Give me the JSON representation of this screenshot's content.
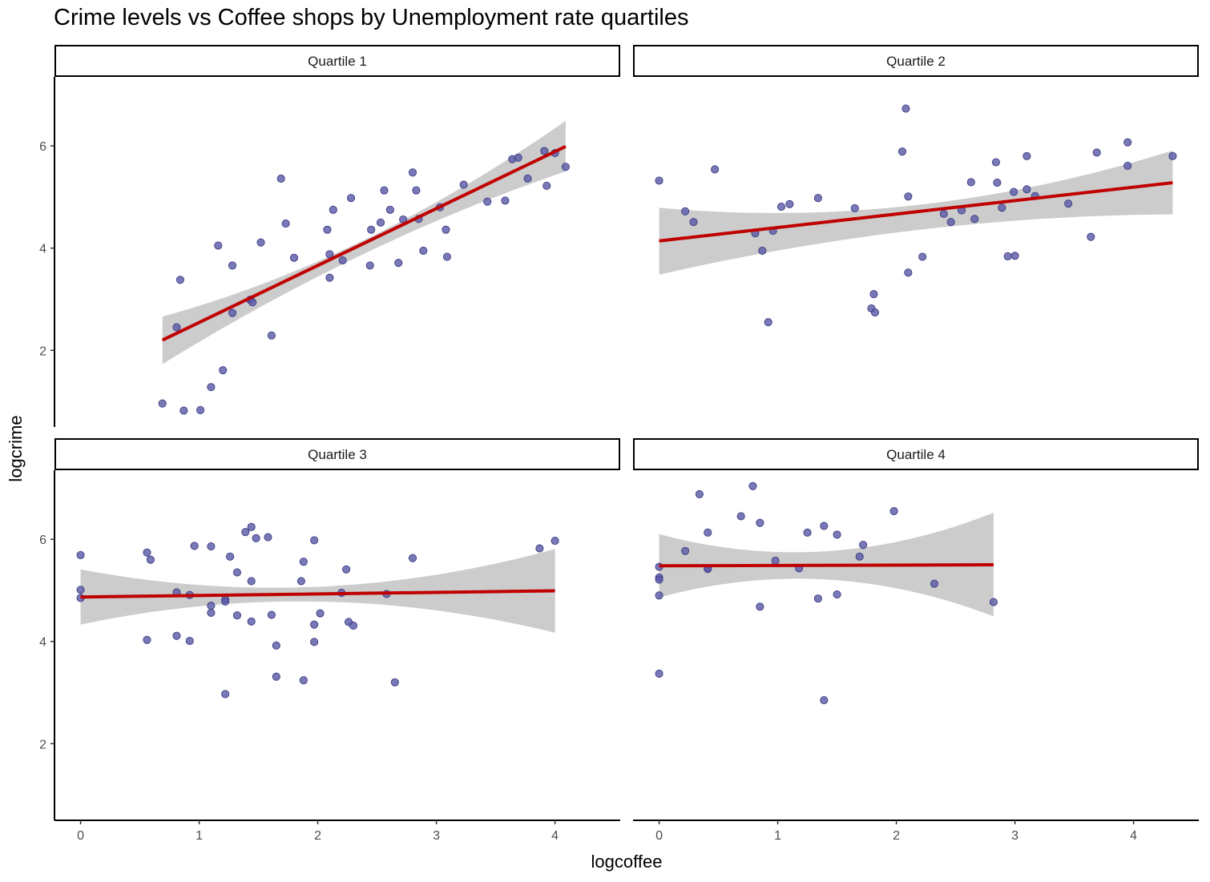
{
  "chart_data": {
    "type": "scatter",
    "title": "Crime levels vs Coffee shops by Unemployment rate quartiles",
    "xlabel": "logcoffee",
    "ylabel": "logcrime",
    "xlim": [
      -0.22,
      4.55
    ],
    "ylim": [
      0.5,
      7.35
    ],
    "x_ticks": [
      0,
      1,
      2,
      3,
      4
    ],
    "y_ticks": [
      2,
      4,
      6
    ],
    "grid": false,
    "colors": {
      "points": "#5b5ba8",
      "fit_line": "#c00000",
      "band": "#cccccc"
    },
    "panels": [
      {
        "label": "Quartile 1",
        "fit": {
          "x": [
            0.69,
            4.09
          ],
          "y": [
            2.2,
            5.99
          ]
        },
        "band": {
          "x": [
            0.69,
            2.4,
            4.09
          ],
          "upper": [
            2.66,
            4.17,
            6.49
          ],
          "lower": [
            1.73,
            3.9,
            5.5
          ]
        },
        "points": [
          [
            0.69,
            0.96
          ],
          [
            0.81,
            2.45
          ],
          [
            0.84,
            3.38
          ],
          [
            0.87,
            0.82
          ],
          [
            1.01,
            0.83
          ],
          [
            1.1,
            1.28
          ],
          [
            1.16,
            4.05
          ],
          [
            1.2,
            1.61
          ],
          [
            1.28,
            3.66
          ],
          [
            1.28,
            2.73
          ],
          [
            1.43,
            2.99
          ],
          [
            1.45,
            2.94
          ],
          [
            1.52,
            4.11
          ],
          [
            1.61,
            2.29
          ],
          [
            1.69,
            5.36
          ],
          [
            1.73,
            4.48
          ],
          [
            1.8,
            3.81
          ],
          [
            2.08,
            4.36
          ],
          [
            2.1,
            3.88
          ],
          [
            2.1,
            3.42
          ],
          [
            2.13,
            4.75
          ],
          [
            2.21,
            3.76
          ],
          [
            2.28,
            4.98
          ],
          [
            2.44,
            3.66
          ],
          [
            2.45,
            4.36
          ],
          [
            2.53,
            4.5
          ],
          [
            2.56,
            5.13
          ],
          [
            2.61,
            4.75
          ],
          [
            2.68,
            3.71
          ],
          [
            2.72,
            4.56
          ],
          [
            2.8,
            5.48
          ],
          [
            2.83,
            5.13
          ],
          [
            2.85,
            4.57
          ],
          [
            2.89,
            3.95
          ],
          [
            3.03,
            4.8
          ],
          [
            3.08,
            4.36
          ],
          [
            3.09,
            3.83
          ],
          [
            3.23,
            5.24
          ],
          [
            3.43,
            4.91
          ],
          [
            3.58,
            4.93
          ],
          [
            3.64,
            5.74
          ],
          [
            3.69,
            5.77
          ],
          [
            3.77,
            5.36
          ],
          [
            3.91,
            5.9
          ],
          [
            3.93,
            5.22
          ],
          [
            4.0,
            5.86
          ],
          [
            4.09,
            5.59
          ]
        ]
      },
      {
        "label": "Quartile 2",
        "fit": {
          "x": [
            0,
            4.33
          ],
          "y": [
            4.14,
            5.28
          ]
        },
        "band": {
          "x": [
            0,
            2.2,
            4.33
          ],
          "upper": [
            4.79,
            4.85,
            5.91
          ],
          "lower": [
            3.48,
            4.36,
            4.66
          ]
        },
        "points": [
          [
            0,
            5.32
          ],
          [
            0.22,
            4.72
          ],
          [
            0.29,
            4.51
          ],
          [
            0.47,
            5.54
          ],
          [
            0.81,
            4.29
          ],
          [
            0.87,
            3.95
          ],
          [
            0.92,
            2.55
          ],
          [
            0.96,
            4.34
          ],
          [
            1.03,
            4.81
          ],
          [
            1.1,
            4.86
          ],
          [
            1.34,
            4.98
          ],
          [
            1.65,
            4.78
          ],
          [
            1.79,
            2.82
          ],
          [
            1.81,
            3.1
          ],
          [
            1.82,
            2.74
          ],
          [
            2.05,
            5.89
          ],
          [
            2.08,
            6.73
          ],
          [
            2.1,
            5.01
          ],
          [
            2.1,
            3.52
          ],
          [
            2.22,
            3.83
          ],
          [
            2.4,
            4.67
          ],
          [
            2.46,
            4.51
          ],
          [
            2.55,
            4.74
          ],
          [
            2.63,
            5.29
          ],
          [
            2.66,
            4.57
          ],
          [
            2.84,
            5.68
          ],
          [
            2.85,
            5.28
          ],
          [
            2.89,
            4.79
          ],
          [
            2.94,
            3.84
          ],
          [
            2.99,
            5.1
          ],
          [
            3.0,
            3.85
          ],
          [
            3.1,
            5.8
          ],
          [
            3.1,
            5.15
          ],
          [
            3.17,
            5.02
          ],
          [
            3.45,
            4.87
          ],
          [
            3.64,
            4.22
          ],
          [
            3.69,
            5.87
          ],
          [
            3.95,
            6.07
          ],
          [
            3.95,
            5.61
          ],
          [
            4.33,
            5.8
          ]
        ]
      },
      {
        "label": "Quartile 3",
        "fit": {
          "x": [
            0,
            4.0
          ],
          "y": [
            4.87,
            4.99
          ]
        },
        "band": {
          "x": [
            0,
            2.0,
            4.0
          ],
          "upper": [
            5.41,
            5.07,
            5.81
          ],
          "lower": [
            4.33,
            4.78,
            4.17
          ]
        },
        "points": [
          [
            0,
            5.69
          ],
          [
            0,
            5.01
          ],
          [
            0,
            4.85
          ],
          [
            0.56,
            5.74
          ],
          [
            0.56,
            4.03
          ],
          [
            0.59,
            5.6
          ],
          [
            0.81,
            4.96
          ],
          [
            0.81,
            4.11
          ],
          [
            0.92,
            4.91
          ],
          [
            0.92,
            4.01
          ],
          [
            0.96,
            5.87
          ],
          [
            1.1,
            5.86
          ],
          [
            1.1,
            4.7
          ],
          [
            1.1,
            4.56
          ],
          [
            1.22,
            4.82
          ],
          [
            1.22,
            4.78
          ],
          [
            1.22,
            2.97
          ],
          [
            1.26,
            5.66
          ],
          [
            1.32,
            5.35
          ],
          [
            1.32,
            4.51
          ],
          [
            1.39,
            6.14
          ],
          [
            1.44,
            6.24
          ],
          [
            1.44,
            5.18
          ],
          [
            1.44,
            4.39
          ],
          [
            1.48,
            6.02
          ],
          [
            1.58,
            6.04
          ],
          [
            1.61,
            4.52
          ],
          [
            1.65,
            3.92
          ],
          [
            1.65,
            3.31
          ],
          [
            1.86,
            5.18
          ],
          [
            1.88,
            5.56
          ],
          [
            1.88,
            3.24
          ],
          [
            1.97,
            5.98
          ],
          [
            1.97,
            4.33
          ],
          [
            1.97,
            3.99
          ],
          [
            2.02,
            4.55
          ],
          [
            2.2,
            4.95
          ],
          [
            2.24,
            5.41
          ],
          [
            2.26,
            4.38
          ],
          [
            2.3,
            4.31
          ],
          [
            2.58,
            4.93
          ],
          [
            2.65,
            3.2
          ],
          [
            2.8,
            5.63
          ],
          [
            3.87,
            5.82
          ],
          [
            4.0,
            5.97
          ]
        ]
      },
      {
        "label": "Quartile 4",
        "fit": {
          "x": [
            0,
            2.82
          ],
          "y": [
            5.48,
            5.5
          ]
        },
        "band": {
          "x": [
            0,
            1.0,
            2.82
          ],
          "upper": [
            6.1,
            5.75,
            6.52
          ],
          "lower": [
            4.86,
            5.22,
            4.49
          ]
        },
        "points": [
          [
            0,
            5.46
          ],
          [
            0,
            5.25
          ],
          [
            0,
            5.21
          ],
          [
            0,
            4.9
          ],
          [
            0,
            3.37
          ],
          [
            0.22,
            5.77
          ],
          [
            0.34,
            6.88
          ],
          [
            0.41,
            6.13
          ],
          [
            0.41,
            5.43
          ],
          [
            0.41,
            5.42
          ],
          [
            0.69,
            6.45
          ],
          [
            0.79,
            7.04
          ],
          [
            0.85,
            6.32
          ],
          [
            0.85,
            4.68
          ],
          [
            0.98,
            5.58
          ],
          [
            1.18,
            5.43
          ],
          [
            1.25,
            6.13
          ],
          [
            1.34,
            4.84
          ],
          [
            1.39,
            6.26
          ],
          [
            1.39,
            2.85
          ],
          [
            1.5,
            6.09
          ],
          [
            1.5,
            4.92
          ],
          [
            1.69,
            5.66
          ],
          [
            1.72,
            5.89
          ],
          [
            1.98,
            6.55
          ],
          [
            2.32,
            5.13
          ],
          [
            2.82,
            4.77
          ]
        ]
      }
    ]
  }
}
